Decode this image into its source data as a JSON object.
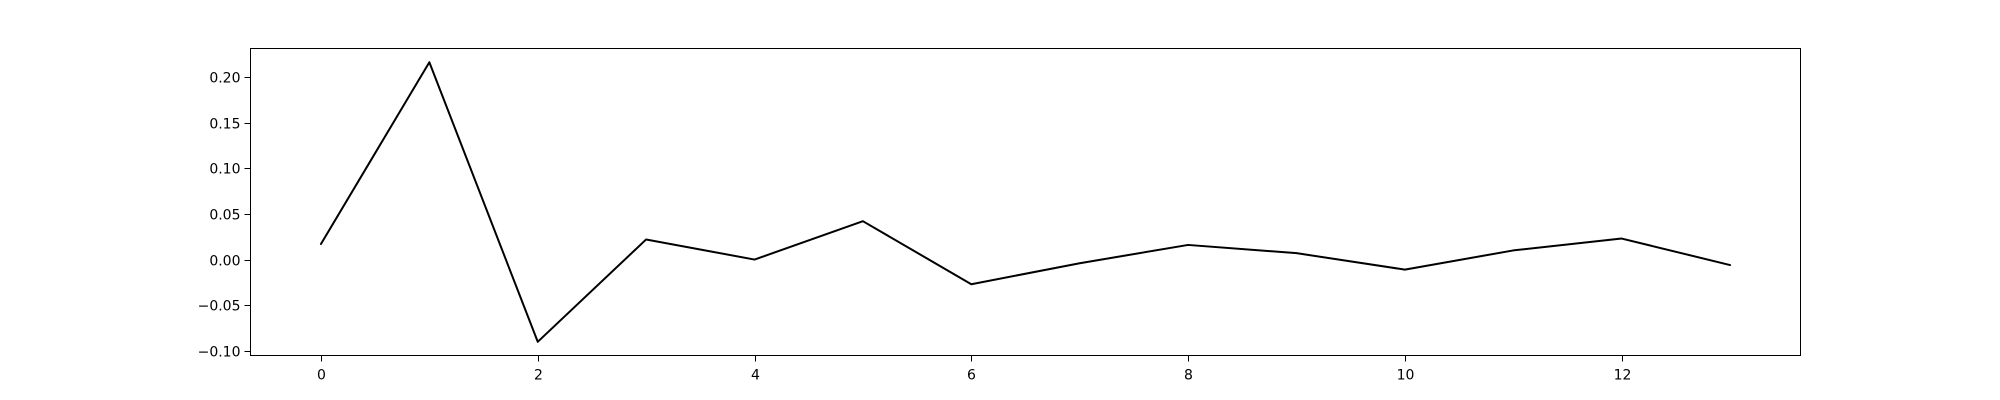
{
  "chart_data": {
    "type": "line",
    "title": "",
    "xlabel": "",
    "ylabel": "",
    "grid": false,
    "xlim": [
      -0.65,
      13.65
    ],
    "ylim": [
      -0.105,
      0.231
    ],
    "x_ticks": [
      0,
      2,
      4,
      6,
      8,
      10,
      12
    ],
    "x_tick_labels": [
      "0",
      "2",
      "4",
      "6",
      "8",
      "10",
      "12"
    ],
    "y_ticks": [
      -0.1,
      -0.05,
      0.0,
      0.05,
      0.1,
      0.15,
      0.2
    ],
    "y_tick_labels": [
      "−0.10",
      "−0.05",
      "0.00",
      "0.05",
      "0.10",
      "0.15",
      "0.20"
    ],
    "series": [
      {
        "color": "#000000",
        "x": [
          0,
          1,
          2,
          3,
          4,
          5,
          6,
          7,
          8,
          9,
          10,
          11,
          12,
          13
        ],
        "values": [
          0.017,
          0.216,
          -0.09,
          0.022,
          0.0,
          0.042,
          -0.027,
          -0.004,
          0.016,
          0.007,
          -0.011,
          0.01,
          0.023,
          -0.006
        ]
      }
    ]
  }
}
